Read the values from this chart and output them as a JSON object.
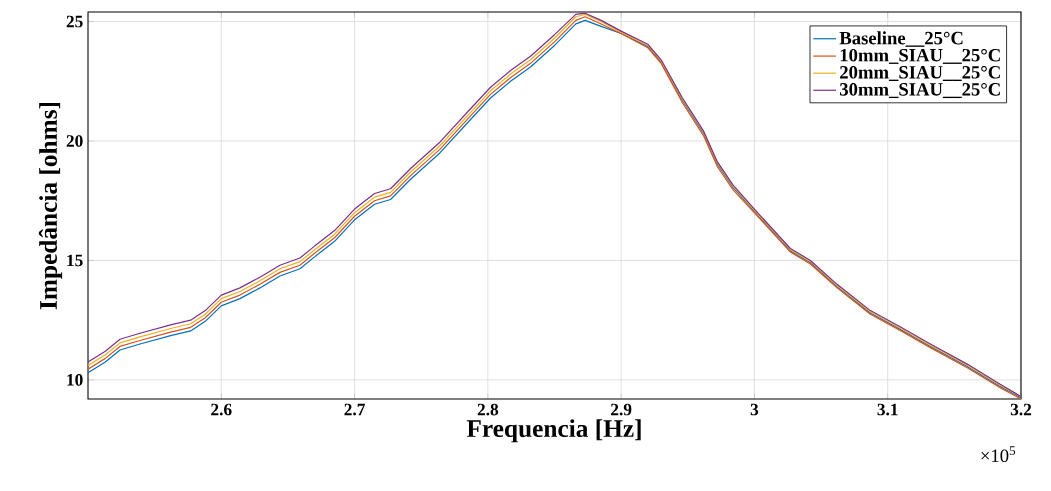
{
  "chart_data": {
    "type": "line",
    "xlabel": "Frequencia [Hz]",
    "ylabel": "Impedância [ohms]",
    "annotations": [
      "×10$^{5}$"
    ],
    "x": [
      2.5,
      2.513,
      2.524,
      2.539,
      2.562,
      2.577,
      2.588,
      2.6,
      2.614,
      2.629,
      2.644,
      2.659,
      2.67,
      2.685,
      2.7,
      2.715,
      2.727,
      2.742,
      2.764,
      2.787,
      2.802,
      2.817,
      2.832,
      2.85,
      2.866,
      2.873,
      2.885,
      2.9,
      2.92,
      2.93,
      2.946,
      2.962,
      2.972,
      2.984,
      3.004,
      3.027,
      3.042,
      3.062,
      3.087,
      3.11,
      3.132,
      3.16,
      3.185,
      3.2
    ],
    "series": [
      {
        "name": "Baseline__25°C",
        "color": "#0072bd",
        "values": [
          10.3,
          10.75,
          11.25,
          11.5,
          11.85,
          12.05,
          12.45,
          13.1,
          13.4,
          13.85,
          14.35,
          14.65,
          15.15,
          15.8,
          16.7,
          17.35,
          17.55,
          18.4,
          19.5,
          20.9,
          21.8,
          22.5,
          23.1,
          24.0,
          24.9,
          25.05,
          24.8,
          24.5,
          23.95,
          23.3,
          21.7,
          20.3,
          19.05,
          18.05,
          16.8,
          15.4,
          14.9,
          13.9,
          12.8,
          12.1,
          11.4,
          10.55,
          9.7,
          9.25
        ]
      },
      {
        "name": "10mm_SIAU__25°C",
        "color": "#d95319",
        "values": [
          10.45,
          10.9,
          11.4,
          11.65,
          12.0,
          12.2,
          12.6,
          13.25,
          13.55,
          14.0,
          14.5,
          14.8,
          15.3,
          15.95,
          16.85,
          17.5,
          17.7,
          18.55,
          19.65,
          21.05,
          21.95,
          22.65,
          23.25,
          24.15,
          25.05,
          25.2,
          24.9,
          24.5,
          23.9,
          23.25,
          21.6,
          20.2,
          18.95,
          17.95,
          16.75,
          15.35,
          14.85,
          13.85,
          12.75,
          12.05,
          11.35,
          10.5,
          9.65,
          9.2
        ]
      },
      {
        "name": "20mm_SIAU__25°C",
        "color": "#edb120",
        "values": [
          10.6,
          11.05,
          11.55,
          11.8,
          12.15,
          12.35,
          12.75,
          13.4,
          13.7,
          14.15,
          14.65,
          14.95,
          15.45,
          16.1,
          17.0,
          17.65,
          17.85,
          18.7,
          19.8,
          21.2,
          22.1,
          22.8,
          23.4,
          24.3,
          25.2,
          25.3,
          25.0,
          24.55,
          24.0,
          23.35,
          21.75,
          20.35,
          19.1,
          18.1,
          16.85,
          15.45,
          14.95,
          13.95,
          12.85,
          12.15,
          11.45,
          10.6,
          9.75,
          9.3
        ]
      },
      {
        "name": "30mm_SIAU__25°C",
        "color": "#7e2f8e",
        "values": [
          10.75,
          11.2,
          11.7,
          11.95,
          12.3,
          12.5,
          12.9,
          13.55,
          13.85,
          14.3,
          14.8,
          15.1,
          15.6,
          16.25,
          17.15,
          17.8,
          18.0,
          18.85,
          19.95,
          21.35,
          22.25,
          22.95,
          23.55,
          24.45,
          25.3,
          25.35,
          25.05,
          24.6,
          24.05,
          23.4,
          21.8,
          20.4,
          19.15,
          18.15,
          16.9,
          15.5,
          15.0,
          14.0,
          12.9,
          12.2,
          11.5,
          10.65,
          9.8,
          9.3
        ]
      }
    ],
    "xlim": [
      2.5,
      3.2
    ],
    "xticks": [
      2.6,
      2.7,
      2.8,
      2.9,
      3,
      3.1,
      3.2
    ],
    "ylim": [
      9.2,
      25.4
    ],
    "yticks": [
      10,
      15,
      20,
      25
    ],
    "grid": true,
    "legend": "top right",
    "line_style": "solid",
    "marker": "none"
  }
}
